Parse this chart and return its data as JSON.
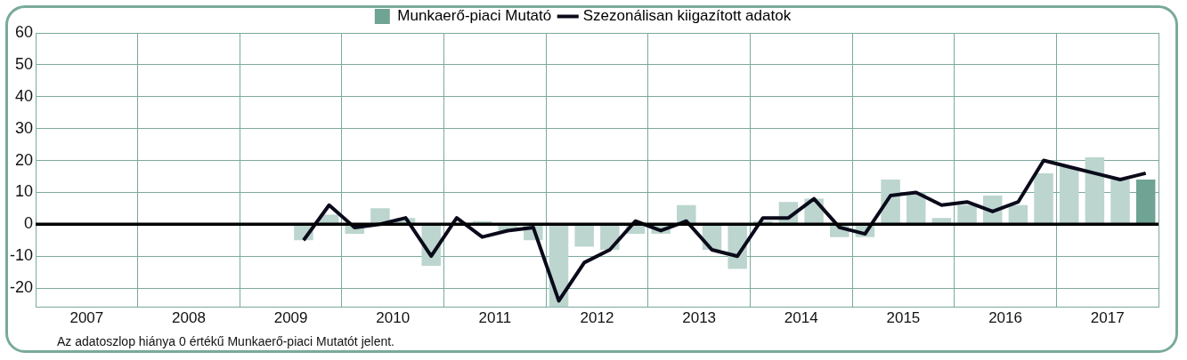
{
  "chart_data": {
    "type": "bar",
    "xlim": [
      2007,
      2018
    ],
    "xticks": [
      {
        "value": 2007.5,
        "label": "2007"
      },
      {
        "value": 2008,
        "label": null
      },
      {
        "value": 2008.5,
        "label": "2008"
      },
      {
        "value": 2009,
        "label": null
      },
      {
        "value": 2009.5,
        "label": "2009"
      },
      {
        "value": 2010,
        "label": null
      },
      {
        "value": 2010.5,
        "label": "2010"
      },
      {
        "value": 2011,
        "label": null
      },
      {
        "value": 2011.5,
        "label": "2011"
      },
      {
        "value": 2012,
        "label": null
      },
      {
        "value": 2012.5,
        "label": "2012"
      },
      {
        "value": 2013,
        "label": null
      },
      {
        "value": 2013.5,
        "label": "2013"
      },
      {
        "value": 2014,
        "label": null
      },
      {
        "value": 2014.5,
        "label": "2014"
      },
      {
        "value": 2015,
        "label": null
      },
      {
        "value": 2015.5,
        "label": "2015"
      },
      {
        "value": 2016,
        "label": null
      },
      {
        "value": 2016.5,
        "label": "2016"
      },
      {
        "value": 2017,
        "label": null
      },
      {
        "value": 2017.5,
        "label": "2017"
      },
      {
        "value": 2018,
        "label": null
      }
    ],
    "ylim": [
      -26,
      60
    ],
    "yticks": [
      -20,
      -10,
      0,
      10,
      20,
      30,
      40,
      50,
      60
    ],
    "grid": true,
    "legend": "top",
    "ref_lines": [
      {
        "axis": "y",
        "value": 0,
        "color": "#000000"
      }
    ],
    "annotations": [
      "Az adatoszlop hiánya 0 értékű Munkaerő-piaci Mutatót jelent."
    ],
    "series": [
      {
        "name": "Munkaerő-piaci Mutató",
        "color": "#6fa394",
        "x": [
          2009.625,
          2009.875,
          2010.125,
          2010.375,
          2010.625,
          2010.875,
          2011.125,
          2011.375,
          2011.625,
          2011.875,
          2012.125,
          2012.375,
          2012.625,
          2012.875,
          2013.125,
          2013.375,
          2013.625,
          2013.875,
          2014.125,
          2014.375,
          2014.625,
          2014.875,
          2015.125,
          2015.375,
          2015.625,
          2015.875,
          2016.125,
          2016.375,
          2016.625,
          2016.875,
          2017.125,
          2017.375,
          2017.625,
          2017.875
        ],
        "values": [
          -5,
          3,
          -3,
          5,
          2,
          -13,
          0,
          1,
          -2,
          -5,
          -26,
          -7,
          -8,
          -3,
          -3,
          6,
          -8,
          -14,
          1,
          7,
          8,
          -4,
          -4,
          14,
          10,
          2,
          6,
          9,
          6,
          16,
          18,
          21,
          14,
          14
        ],
        "colors": [
          "#bcd5cf",
          "#bcd5cf",
          "#bcd5cf",
          "#bcd5cf",
          "#bcd5cf",
          "#bcd5cf",
          "#bcd5cf",
          "#bcd5cf",
          "#bcd5cf",
          "#bcd5cf",
          "#bcd5cf",
          "#bcd5cf",
          "#bcd5cf",
          "#bcd5cf",
          "#bcd5cf",
          "#bcd5cf",
          "#bcd5cf",
          "#bcd5cf",
          "#bcd5cf",
          "#bcd5cf",
          "#bcd5cf",
          "#bcd5cf",
          "#bcd5cf",
          "#bcd5cf",
          "#bcd5cf",
          "#bcd5cf",
          "#bcd5cf",
          "#bcd5cf",
          "#bcd5cf",
          "#bcd5cf",
          "#bcd5cf",
          "#bcd5cf",
          "#bcd5cf",
          "#6fa394"
        ]
      },
      {
        "name": "Szezonálisan kiigazított adatok",
        "type": "line",
        "color": "#0a0a1a",
        "marker": "none",
        "line_style": "solid",
        "x": [
          2009.625,
          2009.875,
          2010.125,
          2010.375,
          2010.625,
          2010.875,
          2011.125,
          2011.375,
          2011.625,
          2011.875,
          2012.125,
          2012.375,
          2012.625,
          2012.875,
          2013.125,
          2013.375,
          2013.625,
          2013.875,
          2014.125,
          2014.375,
          2014.625,
          2014.875,
          2015.125,
          2015.375,
          2015.625,
          2015.875,
          2016.125,
          2016.375,
          2016.625,
          2016.875,
          2017.125,
          2017.375,
          2017.625,
          2017.875
        ],
        "values": [
          -5,
          6,
          -1,
          0,
          2,
          -10,
          2,
          -4,
          -2,
          -1,
          -24,
          -12,
          -8,
          1,
          -2,
          1,
          -8,
          -10,
          2,
          2,
          8,
          -1,
          -3,
          9,
          10,
          6,
          7,
          4,
          7,
          20,
          18,
          16,
          14,
          16
        ]
      }
    ]
  }
}
